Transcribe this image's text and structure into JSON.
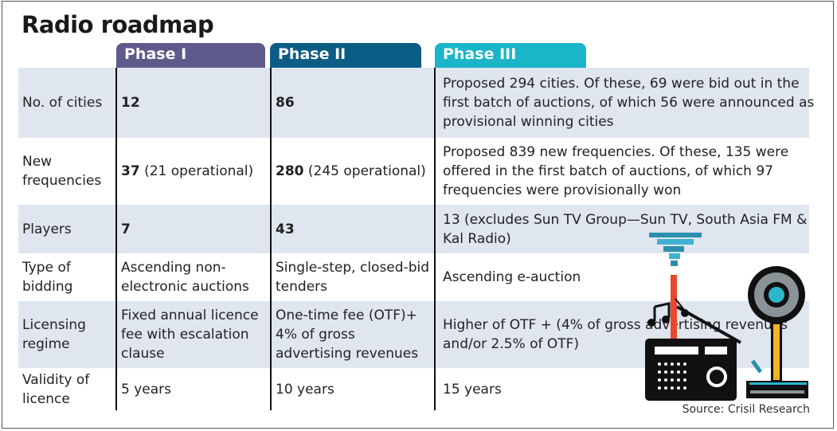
{
  "title": "Radio roadmap",
  "phases": [
    {
      "label": "Phase I",
      "color": "#5e5a8c"
    },
    {
      "label": "Phase II",
      "color": "#0b5d86"
    },
    {
      "label": "Phase III",
      "color": "#1ab5c8"
    }
  ],
  "rows": [
    {
      "label": "No. of cities",
      "p1_bold": "12",
      "p1": "",
      "p2_bold": "86",
      "p2": "",
      "p3": "Proposed 294 cities. Of these, 69 were bid out in the first batch of auctions, of which 56 were announced as provisional winning cities"
    },
    {
      "label": "New frequencies",
      "p1_bold": "37",
      "p1": " (21 operational)",
      "p2_bold": "280",
      "p2": " (245 operational)",
      "p3": "Proposed 839 new frequencies. Of these, 135 were offered in the first batch of auctions, of which 97 frequencies were provisionally won"
    },
    {
      "label": "Players",
      "p1_bold": "7",
      "p1": "",
      "p2_bold": "43",
      "p2": "",
      "p3": "13 (excludes Sun TV Group—Sun TV, South Asia FM & Kal Radio)"
    },
    {
      "label": "Type of bidding",
      "p1_bold": "",
      "p1": "Ascending non-electronic auctions",
      "p2_bold": "",
      "p2": "Single-step, closed-bid tenders",
      "p3": "Ascending e-auction"
    },
    {
      "label": "Licensing regime",
      "p1_bold": "",
      "p1": "Fixed annual licence fee with escalation clause",
      "p2_bold": "",
      "p2": "One-time fee (OTF)+ 4% of gross advertising revenues",
      "p3": "Higher of OTF + (4% of gross advertising revenues and/or 2.5% of OTF)"
    },
    {
      "label": "Validity of licence",
      "p1_bold": "",
      "p1": "5 years",
      "p2_bold": "",
      "p2": "10 years",
      "p3": "15 years"
    }
  ],
  "source": "Source: Crisil Research",
  "row_shade": "#dfe6ef"
}
